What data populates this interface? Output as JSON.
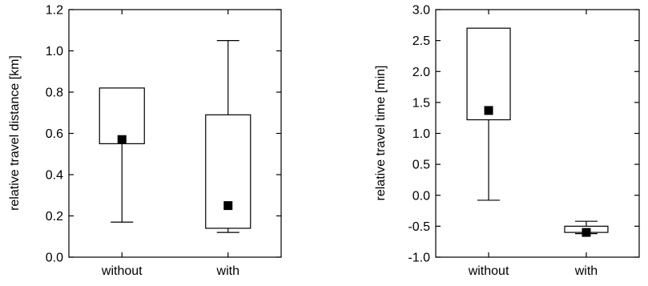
{
  "chart_data": [
    {
      "type": "box",
      "title": "",
      "xlabel": "",
      "ylabel": "relative travel distance [km]",
      "ylim": [
        0.0,
        1.2
      ],
      "yticks": [
        0.0,
        0.2,
        0.4,
        0.6,
        0.8,
        1.0,
        1.2
      ],
      "ytick_labels": [
        "0.0",
        "0.2",
        "0.4",
        "0.6",
        "0.8",
        "1.0",
        "1.2"
      ],
      "categories": [
        "without",
        "with"
      ],
      "series": [
        {
          "category": "without",
          "whisker_low": 0.17,
          "box_low": 0.55,
          "box_high": 0.82,
          "whisker_high": 0.82,
          "marker": 0.57
        },
        {
          "category": "with",
          "whisker_low": 0.12,
          "box_low": 0.14,
          "box_high": 0.69,
          "whisker_high": 1.05,
          "marker": 0.25
        }
      ],
      "grid": false
    },
    {
      "type": "box",
      "title": "",
      "xlabel": "",
      "ylabel": "relative travel time [min]",
      "ylim": [
        -1.0,
        3.0
      ],
      "yticks": [
        -1.0,
        -0.5,
        0.0,
        0.5,
        1.0,
        1.5,
        2.0,
        2.5,
        3.0
      ],
      "ytick_labels": [
        "-1.0",
        "-0.5",
        "0.0",
        "0.5",
        "1.0",
        "1.5",
        "2.0",
        "2.5",
        "3.0"
      ],
      "categories": [
        "without",
        "with"
      ],
      "series": [
        {
          "category": "without",
          "whisker_low": -0.08,
          "box_low": 1.22,
          "box_high": 2.7,
          "whisker_high": 2.7,
          "marker": 1.37
        },
        {
          "category": "with",
          "whisker_low": -0.62,
          "box_low": -0.6,
          "box_high": -0.5,
          "whisker_high": -0.42,
          "marker": -0.6
        }
      ],
      "grid": false
    }
  ]
}
